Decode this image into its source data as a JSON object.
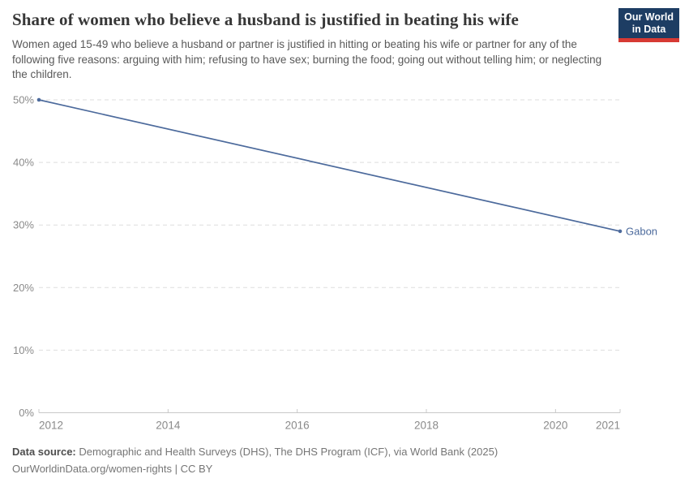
{
  "header": {
    "title": "Share of women who believe a husband is justified in beating his wife",
    "subtitle": "Women aged 15-49 who believe a husband or partner is justified in hitting or beating his wife or partner for any of the following five reasons: arguing with him; refusing to have sex; burning the food; going out without telling him; or neglecting the children.",
    "logo": {
      "line1": "Our World",
      "line2": "in Data",
      "bg_color": "#1d3d63",
      "accent_color": "#d73a34"
    }
  },
  "chart_data": {
    "type": "line",
    "title": "Share of women who believe a husband is justified in beating his wife",
    "xlabel": "",
    "ylabel": "",
    "x_range": [
      2012,
      2021
    ],
    "y_range": [
      0,
      50
    ],
    "y_ticks": [
      0,
      10,
      20,
      30,
      40,
      50
    ],
    "y_tick_suffix": "%",
    "x_ticks": [
      2012,
      2014,
      2016,
      2018,
      2020,
      2021
    ],
    "grid": "horizontal-dashed",
    "legend_position": "end-of-line-label",
    "colors": {
      "grid": "#dedede",
      "axis": "#c8c8c8",
      "tick_label": "#8a8a8a"
    },
    "series": [
      {
        "name": "Gabon",
        "color": "#4c6a9c",
        "points": [
          [
            2012,
            50
          ],
          [
            2021,
            29
          ]
        ]
      }
    ]
  },
  "footer": {
    "source_label": "Data source:",
    "source_text": " Demographic and Health Surveys (DHS), The DHS Program (ICF), via World Bank (2025)",
    "license_line": "OurWorldinData.org/women-rights | CC BY"
  }
}
